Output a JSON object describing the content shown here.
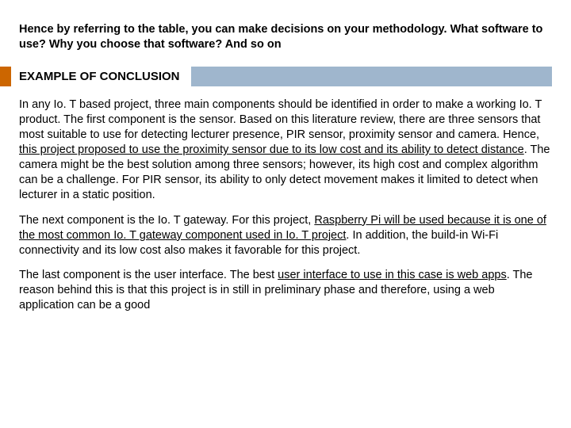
{
  "intro": "Hence by referring to the table, you can make decisions on your methodology. What software to use? Why you choose that software? And so on",
  "heading": "EXAMPLE OF CONCLUSION",
  "p1a": "In any Io. T based project, three main components should be identified in order to make a working Io. T product. The first component is the sensor. Based on this literature review, there are three sensors that most suitable to use for detecting lecturer presence, PIR sensor, proximity sensor and camera. Hence, ",
  "p1u": "this project proposed to use the proximity sensor due to its low cost and its ability to detect distance",
  "p1b": ". The camera might be the best solution among three sensors; however, its high cost and complex algorithm can be a challenge. For PIR sensor, its ability to only detect movement makes it limited to detect when lecturer in a static position.",
  "p2a": "The next component is the Io. T gateway. For this project, ",
  "p2u": "Raspberry Pi will be used because it is one of the most common Io. T gateway component used in Io. T project",
  "p2b": ". In addition, the build-in Wi-Fi connectivity and its low cost also makes it favorable for this project.",
  "p3a": "The last component is the user interface. The best ",
  "p3u": "user interface to use in this case is web apps",
  "p3b": ". The reason behind this is that this project is in still in preliminary phase and therefore, using a web application can be a good",
  "colors": {
    "accent": "#cc6600",
    "bar": "#9fb6cd",
    "text": "#000000",
    "background": "#ffffff"
  }
}
